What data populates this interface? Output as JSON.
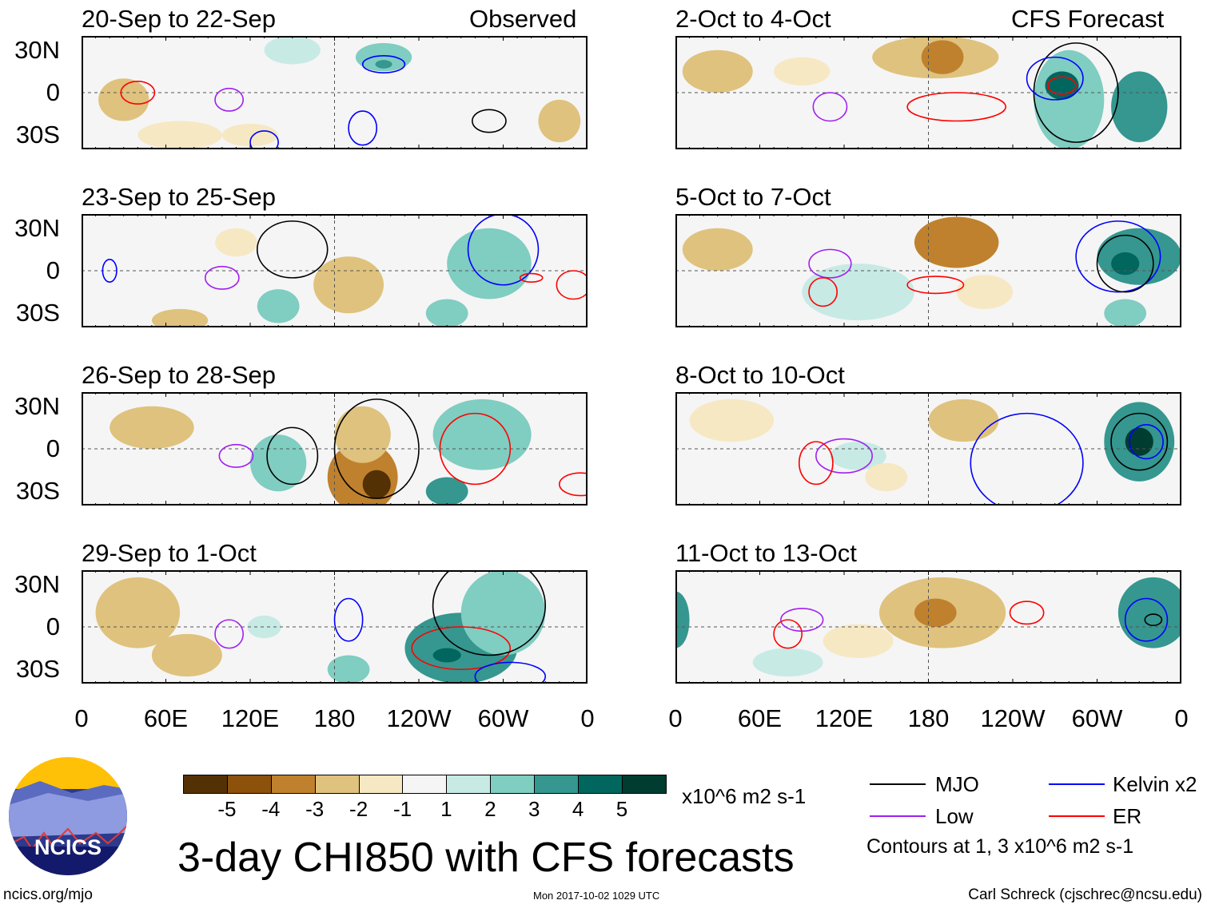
{
  "header": {
    "left": "Observed",
    "right": "CFS Forecast"
  },
  "y_ticks": [
    "30N",
    "0",
    "30S"
  ],
  "x_ticks": [
    "0",
    "60E",
    "120E",
    "180",
    "120W",
    "60W",
    "0"
  ],
  "panels_left": [
    {
      "title": "20-Sep to 22-Sep",
      "blobs": [
        [
          30,
          -5,
          18,
          15,
          -2
        ],
        [
          70,
          -30,
          30,
          10,
          -1
        ],
        [
          150,
          30,
          20,
          10,
          1
        ],
        [
          215,
          25,
          20,
          10,
          2
        ],
        [
          215,
          20,
          6,
          3,
          3
        ],
        [
          340,
          -20,
          15,
          15,
          -2
        ],
        [
          120,
          -30,
          20,
          8,
          -1
        ]
      ],
      "contours": [
        [
          40,
          0,
          12,
          8,
          "er"
        ],
        [
          105,
          -5,
          10,
          8,
          "low"
        ],
        [
          215,
          20,
          15,
          6,
          "kelvin"
        ],
        [
          200,
          -25,
          10,
          12,
          "kelvin"
        ],
        [
          290,
          -20,
          12,
          8,
          "mjo"
        ],
        [
          130,
          -35,
          10,
          8,
          "kelvin"
        ]
      ]
    },
    {
      "title": "23-Sep to 25-Sep",
      "blobs": [
        [
          190,
          -10,
          25,
          20,
          -2
        ],
        [
          70,
          -35,
          20,
          8,
          -2
        ],
        [
          140,
          -25,
          15,
          12,
          2
        ],
        [
          290,
          5,
          30,
          25,
          2
        ],
        [
          260,
          -30,
          15,
          10,
          2
        ],
        [
          110,
          20,
          15,
          10,
          -1
        ]
      ],
      "contours": [
        [
          20,
          0,
          5,
          8,
          "kelvin"
        ],
        [
          100,
          -5,
          12,
          8,
          "low"
        ],
        [
          150,
          15,
          25,
          20,
          "mjo"
        ],
        [
          300,
          15,
          25,
          25,
          "kelvin"
        ],
        [
          320,
          -5,
          8,
          3,
          "er"
        ],
        [
          350,
          -10,
          12,
          10,
          "er"
        ]
      ]
    },
    {
      "title": "26-Sep to 28-Sep",
      "blobs": [
        [
          200,
          -20,
          25,
          25,
          -3
        ],
        [
          210,
          -25,
          10,
          10,
          -5
        ],
        [
          200,
          10,
          20,
          20,
          -2
        ],
        [
          140,
          -10,
          20,
          20,
          2
        ],
        [
          285,
          10,
          35,
          25,
          2
        ],
        [
          260,
          -30,
          15,
          10,
          3
        ],
        [
          50,
          15,
          30,
          15,
          -2
        ]
      ],
      "contours": [
        [
          110,
          -5,
          12,
          8,
          "low"
        ],
        [
          150,
          -5,
          18,
          20,
          "mjo"
        ],
        [
          280,
          0,
          25,
          25,
          "er"
        ],
        [
          210,
          0,
          30,
          35,
          "mjo"
        ],
        [
          355,
          -25,
          15,
          8,
          "er"
        ]
      ]
    },
    {
      "title": "29-Sep to 1-Oct",
      "blobs": [
        [
          40,
          10,
          30,
          25,
          -2
        ],
        [
          75,
          -20,
          25,
          15,
          -2
        ],
        [
          270,
          -15,
          40,
          25,
          3
        ],
        [
          260,
          -20,
          10,
          5,
          4
        ],
        [
          300,
          10,
          30,
          30,
          2
        ],
        [
          190,
          -30,
          15,
          10,
          2
        ],
        [
          130,
          0,
          12,
          8,
          1
        ]
      ],
      "contours": [
        [
          105,
          -5,
          10,
          10,
          "low"
        ],
        [
          190,
          5,
          10,
          15,
          "kelvin"
        ],
        [
          270,
          -15,
          35,
          15,
          "er"
        ],
        [
          290,
          15,
          40,
          35,
          "mjo"
        ],
        [
          305,
          -35,
          25,
          10,
          "kelvin"
        ]
      ]
    }
  ],
  "panels_right": [
    {
      "title": "2-Oct to 4-Oct",
      "blobs": [
        [
          30,
          15,
          25,
          15,
          -2
        ],
        [
          185,
          25,
          45,
          15,
          -2
        ],
        [
          190,
          25,
          15,
          12,
          -3
        ],
        [
          280,
          -5,
          25,
          35,
          2
        ],
        [
          275,
          5,
          12,
          10,
          4
        ],
        [
          330,
          -10,
          20,
          25,
          3
        ],
        [
          90,
          15,
          20,
          10,
          -1
        ]
      ],
      "contours": [
        [
          110,
          -10,
          12,
          10,
          "low"
        ],
        [
          200,
          -10,
          35,
          10,
          "er"
        ],
        [
          285,
          0,
          30,
          35,
          "mjo"
        ],
        [
          275,
          5,
          10,
          6,
          "er"
        ],
        [
          270,
          10,
          20,
          15,
          "kelvin"
        ]
      ]
    },
    {
      "title": "5-Oct to 7-Oct",
      "blobs": [
        [
          200,
          20,
          30,
          18,
          -3
        ],
        [
          30,
          15,
          25,
          15,
          -2
        ],
        [
          130,
          -15,
          40,
          20,
          1
        ],
        [
          330,
          10,
          30,
          20,
          3
        ],
        [
          320,
          5,
          10,
          8,
          4
        ],
        [
          320,
          -30,
          15,
          10,
          2
        ],
        [
          220,
          -15,
          20,
          12,
          -1
        ]
      ],
      "contours": [
        [
          110,
          5,
          15,
          10,
          "low"
        ],
        [
          105,
          -15,
          10,
          10,
          "er"
        ],
        [
          185,
          -10,
          20,
          6,
          "er"
        ],
        [
          315,
          10,
          30,
          25,
          "kelvin"
        ],
        [
          320,
          5,
          20,
          20,
          "mjo"
        ]
      ]
    },
    {
      "title": "8-Oct to 10-Oct",
      "blobs": [
        [
          205,
          20,
          25,
          15,
          -2
        ],
        [
          330,
          5,
          25,
          28,
          3
        ],
        [
          330,
          5,
          10,
          10,
          5
        ],
        [
          40,
          20,
          30,
          15,
          -1
        ],
        [
          130,
          -5,
          20,
          10,
          1
        ],
        [
          150,
          -20,
          15,
          10,
          -1
        ]
      ],
      "contours": [
        [
          120,
          -5,
          20,
          12,
          "low"
        ],
        [
          100,
          -10,
          12,
          15,
          "er"
        ],
        [
          330,
          5,
          20,
          20,
          "mjo"
        ],
        [
          335,
          5,
          12,
          12,
          "kelvin"
        ],
        [
          250,
          -10,
          40,
          35,
          "kelvin"
        ]
      ]
    },
    {
      "title": "11-Oct to 13-Oct",
      "blobs": [
        [
          190,
          10,
          45,
          25,
          -2
        ],
        [
          185,
          10,
          15,
          10,
          -3
        ],
        [
          0,
          5,
          10,
          20,
          3
        ],
        [
          340,
          10,
          25,
          25,
          3
        ],
        [
          130,
          -10,
          25,
          12,
          -1
        ],
        [
          80,
          -25,
          25,
          10,
          1
        ]
      ],
      "contours": [
        [
          90,
          5,
          15,
          8,
          "low"
        ],
        [
          80,
          -5,
          10,
          10,
          "er"
        ],
        [
          250,
          10,
          12,
          8,
          "er"
        ],
        [
          335,
          5,
          15,
          15,
          "kelvin"
        ],
        [
          340,
          5,
          6,
          4,
          "mjo"
        ]
      ]
    }
  ],
  "colorbar": {
    "colors": [
      "#543005",
      "#8c510a",
      "#bf812d",
      "#dfc27d",
      "#f6e8c3",
      "#f5f5f5",
      "#c7eae5",
      "#80cdc1",
      "#35978f",
      "#01665e",
      "#003c30"
    ],
    "labels": [
      "-5",
      "-4",
      "-3",
      "-2",
      "-1",
      "1",
      "2",
      "3",
      "4",
      "5"
    ],
    "units": "x10^6 m2 s-1"
  },
  "legend": {
    "items": [
      {
        "label": "MJO",
        "color": "#000000"
      },
      {
        "label": "Kelvin x2",
        "color": "#0000ff"
      },
      {
        "label": "Low",
        "color": "#a020f0"
      },
      {
        "label": "ER",
        "color": "#ff0000"
      }
    ],
    "note": "Contours at 1, 3 x10^6 m2 s-1"
  },
  "title": "3-day CHI850 with CFS forecasts",
  "logo_text": "NCICS",
  "footer": {
    "url": "ncics.org/mjo",
    "timestamp": "Mon 2017-10-02 1029 UTC",
    "author": "Carl Schreck (cjschrec@ncsu.edu)"
  }
}
